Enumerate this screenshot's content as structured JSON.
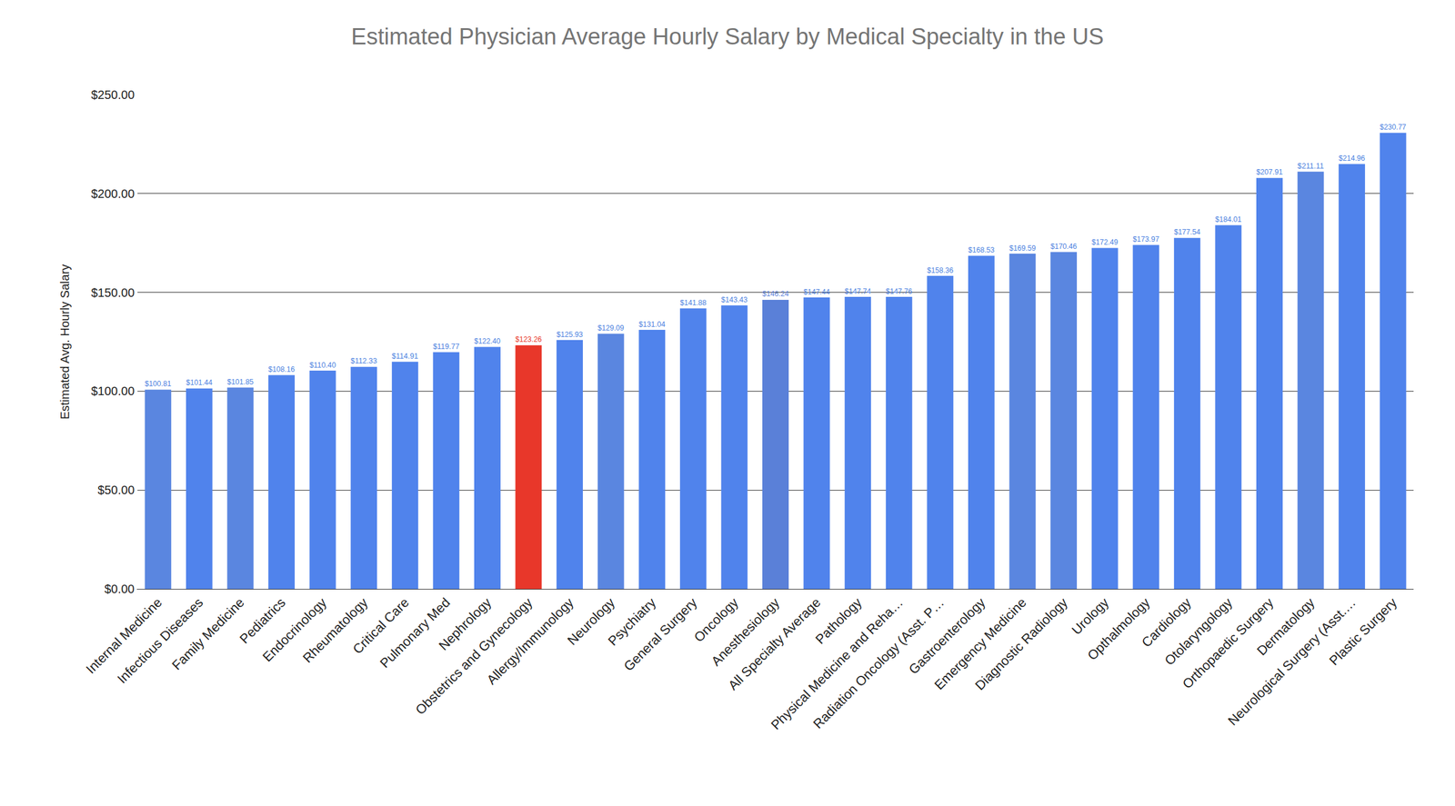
{
  "chart_data": {
    "type": "bar",
    "title": "Estimated Physician Average Hourly Salary by Medical Specialty in the US",
    "y_label": "Estimated Avg. Hourly Salary",
    "categories": [
      "Internal Medicine",
      "Infectious Diseases",
      "Family Medicine",
      "Pediatrics",
      "Endocrinology",
      "Rheumatology",
      "Critical Care",
      "Pulmonary Med",
      "Nephrology",
      "Obstetrics and Gynecology",
      "Allergy/Immunology",
      "Neurology",
      "Psychiatry",
      "General Surgery",
      "Oncology",
      "Anesthesiology",
      "All Specialty Average",
      "Pathology",
      "Physical Medicine and Reha…",
      "Radiation Oncology (Asst. P…",
      "Gastroenterology",
      "Emergency Medicine",
      "Diagnostic Radiology",
      "Urology",
      "Opthalmology",
      "Cardiology",
      "Otolaryngology",
      "Orthopaedic Surgery",
      "Dermatology",
      "Neurological Surgery (Asst.…",
      "Plastic Surgery"
    ],
    "values": [
      100.81,
      101.44,
      101.85,
      108.16,
      110.4,
      112.33,
      114.91,
      119.77,
      122.4,
      123.26,
      125.93,
      129.09,
      131.04,
      141.88,
      143.43,
      146.24,
      147.44,
      147.74,
      147.76,
      158.36,
      168.53,
      169.59,
      170.46,
      172.49,
      173.97,
      177.54,
      184.01,
      207.91,
      211.11,
      214.96,
      230.77
    ],
    "value_labels": [
      "$100.81",
      "$101.44",
      "$101.85",
      "$108.16",
      "$110.40",
      "$112.33",
      "$114.91",
      "$119.77",
      "$122.40",
      "$123.26",
      "$125.93",
      "$129.09",
      "$131.04",
      "$141.88",
      "$143.43",
      "$146.24",
      "$147.44",
      "$147.74",
      "$147.76",
      "$158.36",
      "$168.53",
      "$169.59",
      "$170.46",
      "$172.49",
      "$173.97",
      "$177.54",
      "$184.01",
      "$207.91",
      "$211.11",
      "$214.96",
      "$230.77"
    ],
    "colors": [
      "#5a86e0",
      "#5083ec",
      "#5a86e0",
      "#5083ec",
      "#5083ec",
      "#5083ec",
      "#5083ec",
      "#5083ec",
      "#5083ec",
      "#e8372a",
      "#5083ec",
      "#5a86e0",
      "#5083ec",
      "#5083ec",
      "#5083ec",
      "#5a80d8",
      "#5083ec",
      "#5083ec",
      "#5083ec",
      "#5083ec",
      "#5083ec",
      "#5a86e0",
      "#5a86e0",
      "#5083ec",
      "#5083ec",
      "#5083ec",
      "#5083ec",
      "#5083ec",
      "#5a86e0",
      "#5083ec",
      "#5083ec"
    ],
    "ylim": [
      0,
      250
    ],
    "yticks": [
      {
        "value": 0,
        "label": "$0.00"
      },
      {
        "value": 50,
        "label": "$50.00"
      },
      {
        "value": 100,
        "label": "$100.00"
      },
      {
        "value": 150,
        "label": "$150.00"
      },
      {
        "value": 200,
        "label": "$200.00"
      },
      {
        "value": 250,
        "label": "$250.00"
      }
    ],
    "grid": true,
    "data_labels": true
  }
}
